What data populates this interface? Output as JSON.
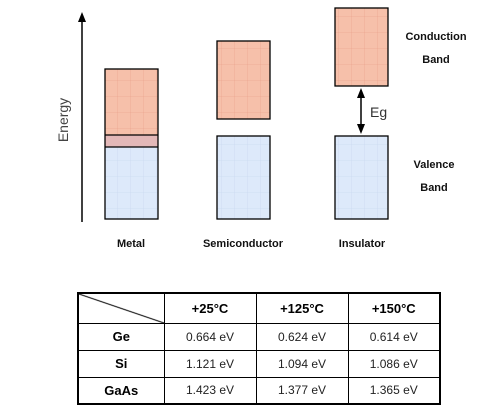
{
  "axis": {
    "label": "Energy"
  },
  "materials": [
    {
      "id": "metal",
      "label": "Metal"
    },
    {
      "id": "semiconductor",
      "label": "Semiconductor"
    },
    {
      "id": "insulator",
      "label": "Insulator"
    }
  ],
  "band_labels": {
    "conduction_line1": "Conduction",
    "conduction_line2": "Band",
    "valence_line1": "Valence",
    "valence_line2": "Band",
    "gap": "Eg"
  },
  "colors": {
    "conduction": "#f6c0aa",
    "valence": "#dde9fa",
    "overlap": "#e3b8b8"
  },
  "table": {
    "headers": [
      "+25°C",
      "+125°C",
      "+150°C"
    ],
    "rows": [
      {
        "name": "Ge",
        "values": [
          "0.664 eV",
          "0.624 eV",
          "0.614 eV"
        ]
      },
      {
        "name": "Si",
        "values": [
          "1.121 eV",
          "1.094 eV",
          "1.086 eV"
        ]
      },
      {
        "name": "GaAs",
        "values": [
          "1.423 eV",
          "1.377 eV",
          "1.365 eV"
        ]
      }
    ]
  }
}
